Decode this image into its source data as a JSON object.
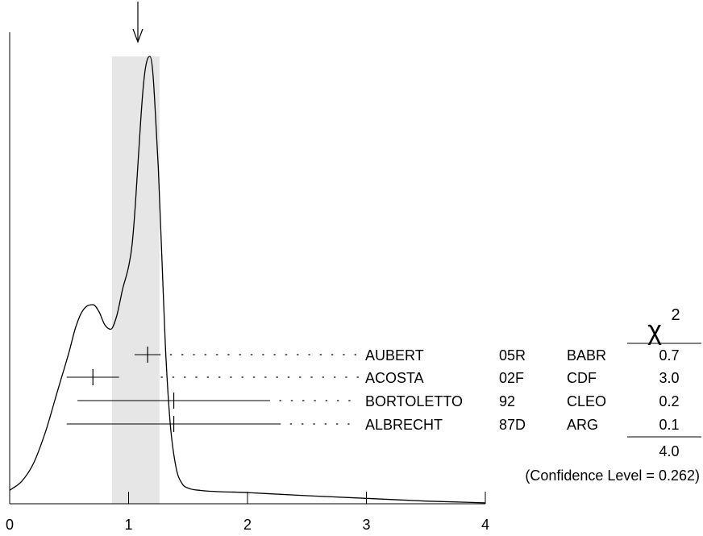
{
  "chart_data": {
    "type": "line",
    "title": "",
    "xlabel": "",
    "ylabel": "",
    "xlim": [
      0,
      4
    ],
    "x_ticks": [
      "0",
      "1",
      "2",
      "3",
      "4"
    ],
    "grid": false,
    "average_marker": {
      "value": 1.06,
      "band": [
        0.86,
        1.26
      ]
    },
    "ideogram": {
      "x": [
        0.0,
        0.1,
        0.2,
        0.3,
        0.4,
        0.5,
        0.55,
        0.6,
        0.65,
        0.7,
        0.75,
        0.8,
        0.85,
        0.9,
        0.95,
        1.0,
        1.03,
        1.06,
        1.1,
        1.13,
        1.16,
        1.18,
        1.2,
        1.22,
        1.25,
        1.28,
        1.31,
        1.35,
        1.4,
        1.45,
        1.5,
        1.6,
        2.0,
        2.5,
        3.0,
        3.5,
        4.0
      ],
      "y": [
        0.03,
        0.05,
        0.09,
        0.16,
        0.25,
        0.34,
        0.39,
        0.425,
        0.442,
        0.445,
        0.43,
        0.4,
        0.39,
        0.42,
        0.48,
        0.53,
        0.58,
        0.68,
        0.85,
        0.95,
        0.995,
        1.0,
        0.975,
        0.9,
        0.75,
        0.55,
        0.35,
        0.18,
        0.08,
        0.045,
        0.035,
        0.03,
        0.025,
        0.018,
        0.012,
        0.006,
        0.002
      ]
    },
    "measurements": [
      {
        "author": "AUBERT",
        "ref": "05R",
        "experiment": "BABR",
        "value": 1.16,
        "error": 0.11,
        "chi2": "0.7"
      },
      {
        "author": "ACOSTA",
        "ref": "02F",
        "experiment": "CDF",
        "value": 0.7,
        "error": 0.22,
        "chi2": "3.0"
      },
      {
        "author": "BORTOLETTO",
        "ref": "92",
        "experiment": "CLEO",
        "value": 1.38,
        "error": 0.81,
        "chi2": "0.2"
      },
      {
        "author": "ALBRECHT",
        "ref": "87D",
        "experiment": "ARG",
        "value": 1.38,
        "error": 0.9,
        "chi2": "0.1"
      }
    ],
    "chi2_label": "χ",
    "chi2_exponent": "2",
    "chi2_total": "4.0",
    "confidence_level": "(Confidence Level = 0.262)"
  }
}
